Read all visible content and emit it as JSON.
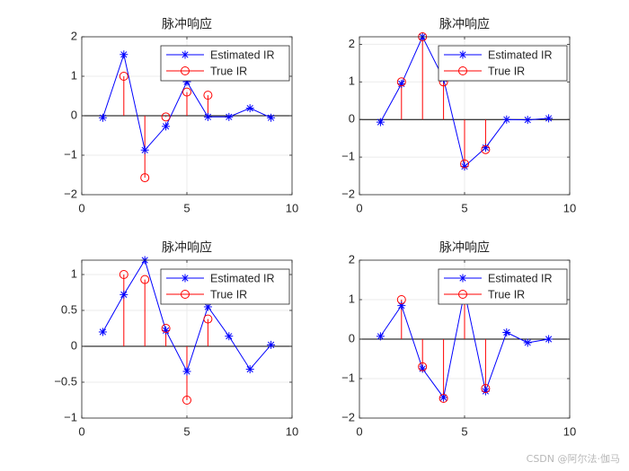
{
  "figure": {
    "watermark": "CSDN @阿尔法·伽马",
    "colors": {
      "estimated": "#0000ff",
      "true_ir": "#ff0000",
      "grid": "#ebebeb",
      "axis": "#262626",
      "zero_line": "#000000"
    }
  },
  "chart_data": [
    {
      "type": "line",
      "title": "脉冲响应",
      "xlim": [
        0,
        10
      ],
      "ylim": [
        -2,
        2
      ],
      "xticks": [
        0,
        5,
        10
      ],
      "yticks": [
        -2,
        -1,
        0,
        1,
        2
      ],
      "ytick_labels": [
        "−2",
        "−1",
        "0",
        "1",
        "2"
      ],
      "grid": true,
      "legend": [
        "Estimated IR",
        "True IR"
      ],
      "legend_position": "top-right",
      "series": [
        {
          "name": "Estimated IR",
          "style": "line-star",
          "x": [
            1,
            2,
            3,
            4,
            5,
            6,
            7,
            8,
            9
          ],
          "y": [
            -0.05,
            1.55,
            -0.87,
            -0.27,
            0.86,
            -0.03,
            -0.03,
            0.19,
            -0.05
          ]
        },
        {
          "name": "True IR",
          "style": "stem-circle",
          "x": [
            2,
            3,
            4,
            5,
            6
          ],
          "y": [
            1.0,
            -1.57,
            -0.03,
            0.6,
            0.52
          ]
        }
      ]
    },
    {
      "type": "line",
      "title": "脉冲响应",
      "xlim": [
        0,
        10
      ],
      "ylim": [
        -2,
        2.2
      ],
      "xticks": [
        0,
        5,
        10
      ],
      "yticks": [
        -2,
        -1,
        0,
        1,
        2
      ],
      "ytick_labels": [
        "−2",
        "−1",
        "0",
        "1",
        "2"
      ],
      "grid": true,
      "legend": [
        "Estimated IR",
        "True IR"
      ],
      "legend_position": "top-right",
      "series": [
        {
          "name": "Estimated IR",
          "style": "line-star",
          "x": [
            1,
            2,
            3,
            4,
            5,
            6,
            7,
            8,
            9
          ],
          "y": [
            -0.07,
            0.95,
            2.2,
            1.08,
            -1.25,
            -0.75,
            0.0,
            -0.01,
            0.03
          ]
        },
        {
          "name": "True IR",
          "style": "stem-circle",
          "x": [
            2,
            3,
            4,
            5,
            6
          ],
          "y": [
            1.0,
            2.2,
            1.0,
            -1.18,
            -0.8
          ]
        }
      ]
    },
    {
      "type": "line",
      "title": "脉冲响应",
      "xlim": [
        0,
        10
      ],
      "ylim": [
        -1,
        1.2
      ],
      "xticks": [
        0,
        5,
        10
      ],
      "yticks": [
        -1,
        -0.5,
        0,
        0.5,
        1
      ],
      "ytick_labels": [
        "−1",
        "−0.5",
        "0",
        "0.5",
        "1"
      ],
      "grid": true,
      "legend": [
        "Estimated IR",
        "True IR"
      ],
      "legend_position": "top-right",
      "series": [
        {
          "name": "Estimated IR",
          "style": "line-star",
          "x": [
            1,
            2,
            3,
            4,
            5,
            6,
            7,
            8,
            9
          ],
          "y": [
            0.2,
            0.72,
            1.2,
            0.22,
            -0.35,
            0.55,
            0.14,
            -0.32,
            0.02
          ]
        },
        {
          "name": "True IR",
          "style": "stem-circle",
          "x": [
            2,
            3,
            4,
            5,
            6
          ],
          "y": [
            1.0,
            0.93,
            0.25,
            -0.75,
            0.38
          ]
        }
      ]
    },
    {
      "type": "line",
      "title": "脉冲响应",
      "xlim": [
        0,
        10
      ],
      "ylim": [
        -2,
        2
      ],
      "xticks": [
        0,
        5,
        10
      ],
      "yticks": [
        -2,
        -1,
        0,
        1,
        2
      ],
      "ytick_labels": [
        "−2",
        "−1",
        "0",
        "1",
        "2"
      ],
      "grid": true,
      "legend": [
        "Estimated IR",
        "True IR"
      ],
      "legend_position": "top-right",
      "series": [
        {
          "name": "Estimated IR",
          "style": "line-star",
          "x": [
            1,
            2,
            3,
            4,
            5,
            6,
            7,
            8,
            9
          ],
          "y": [
            0.07,
            0.85,
            -0.75,
            -1.48,
            1.2,
            -1.32,
            0.17,
            -0.09,
            0.0
          ]
        },
        {
          "name": "True IR",
          "style": "stem-circle",
          "x": [
            2,
            3,
            4,
            5,
            6
          ],
          "y": [
            1.0,
            -0.7,
            -1.5,
            1.2,
            -1.25
          ]
        }
      ]
    }
  ]
}
